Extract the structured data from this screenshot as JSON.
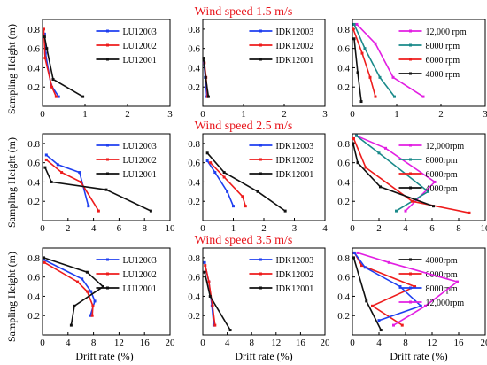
{
  "figure": {
    "row_titles": [
      "Wind speed 1.5 m/s",
      "Wind speed 2.5 m/s",
      "Wind speed 3.5 m/s"
    ],
    "ylabel": "Sampling Height (m)",
    "xlabel": "Drift rate (%)"
  },
  "colors": {
    "blue": "#1f3ff0",
    "red": "#ee1c1c",
    "black": "#111111",
    "magenta": "#e21fe2",
    "teal": "#1a8a8a",
    "title_red": "#e8141b"
  },
  "chart_data": [
    {
      "type": "line",
      "wind_speed": "1.5 m/s",
      "x_ticks": [
        "0",
        "1",
        "2",
        "3"
      ],
      "y_ticks": [
        "0.2",
        "0.4",
        "0.6",
        "0.8"
      ],
      "xlim": [
        0,
        3
      ],
      "ylim": [
        0,
        0.9
      ],
      "xlabel": "",
      "ylabel": "Sampling Height (m)",
      "series": [
        {
          "name": "LU12003",
          "color": "#1f3ff0",
          "x": [
            0.38,
            0.2,
            0.07,
            0.05
          ],
          "y": [
            0.1,
            0.22,
            0.55,
            0.75
          ]
        },
        {
          "name": "LU12002",
          "color": "#ee1c1c",
          "x": [
            0.32,
            0.22,
            0.06,
            0.03
          ],
          "y": [
            0.1,
            0.2,
            0.5,
            0.8
          ]
        },
        {
          "name": "LU12001",
          "color": "#111111",
          "x": [
            0.95,
            0.25,
            0.1,
            0.05
          ],
          "y": [
            0.1,
            0.28,
            0.6,
            0.72
          ]
        }
      ]
    },
    {
      "type": "line",
      "wind_speed": "1.5 m/s",
      "x_ticks": [
        "0",
        "1",
        "2",
        "3"
      ],
      "y_ticks": [
        "0.2",
        "0.4",
        "0.6",
        "0.8"
      ],
      "xlim": [
        0,
        3
      ],
      "ylim": [
        0,
        0.9
      ],
      "xlabel": "",
      "ylabel": "",
      "series": [
        {
          "name": "IDK12003",
          "color": "#1f3ff0",
          "x": [
            0.1,
            0.06,
            0.03
          ],
          "y": [
            0.1,
            0.3,
            0.45
          ]
        },
        {
          "name": "IDK12002",
          "color": "#ee1c1c",
          "x": [
            0.12,
            0.08,
            0.04
          ],
          "y": [
            0.1,
            0.3,
            0.45
          ]
        },
        {
          "name": "IDK12001",
          "color": "#111111",
          "x": [
            0.14,
            0.07,
            0.02
          ],
          "y": [
            0.1,
            0.3,
            0.5
          ]
        }
      ]
    },
    {
      "type": "line",
      "wind_speed": "1.5 m/s",
      "x_ticks": [
        "0",
        "1",
        "2",
        "3"
      ],
      "y_ticks": [
        "0.2",
        "0.4",
        "0.6",
        "0.8"
      ],
      "xlim": [
        0,
        3
      ],
      "ylim": [
        0,
        0.9
      ],
      "xlabel": "",
      "ylabel": "",
      "series": [
        {
          "name": "12,000 rpm",
          "color": "#e21fe2",
          "x": [
            1.6,
            0.92,
            0.52,
            0.1
          ],
          "y": [
            0.1,
            0.3,
            0.65,
            0.85
          ]
        },
        {
          "name": "8000 rpm",
          "color": "#1a8a8a",
          "x": [
            0.95,
            0.62,
            0.28,
            0.04
          ],
          "y": [
            0.1,
            0.3,
            0.6,
            0.85
          ]
        },
        {
          "name": "6000 rpm",
          "color": "#ee1c1c",
          "x": [
            0.52,
            0.4,
            0.22,
            0.02
          ],
          "y": [
            0.1,
            0.3,
            0.55,
            0.8
          ]
        },
        {
          "name": "4000 rpm",
          "color": "#111111",
          "x": [
            0.2,
            0.12,
            0.04
          ],
          "y": [
            0.05,
            0.35,
            0.7
          ]
        }
      ]
    },
    {
      "type": "line",
      "wind_speed": "2.5 m/s",
      "x_ticks": [
        "0",
        "2",
        "4",
        "6",
        "8",
        "10"
      ],
      "y_ticks": [
        "0.2",
        "0.4",
        "0.6",
        "0.8"
      ],
      "xlim": [
        0,
        10
      ],
      "ylim": [
        0,
        0.9
      ],
      "xlabel": "",
      "ylabel": "Sampling Height (m)",
      "series": [
        {
          "name": "LU12003",
          "color": "#1f3ff0",
          "x": [
            3.6,
            2.9,
            1.2,
            0.3
          ],
          "y": [
            0.15,
            0.5,
            0.58,
            0.68
          ]
        },
        {
          "name": "LU12002",
          "color": "#ee1c1c",
          "x": [
            4.4,
            3.0,
            1.5,
            0.3
          ],
          "y": [
            0.1,
            0.4,
            0.5,
            0.63
          ]
        },
        {
          "name": "LU12001",
          "color": "#111111",
          "x": [
            8.5,
            5.0,
            0.7,
            0.2
          ],
          "y": [
            0.1,
            0.32,
            0.4,
            0.55
          ]
        }
      ]
    },
    {
      "type": "line",
      "wind_speed": "2.5 m/s",
      "x_ticks": [
        "0",
        "1",
        "2",
        "3",
        "4"
      ],
      "y_ticks": [
        "0.2",
        "0.4",
        "0.6",
        "0.8"
      ],
      "xlim": [
        0,
        4
      ],
      "ylim": [
        0,
        0.9
      ],
      "xlabel": "",
      "ylabel": "",
      "series": [
        {
          "name": "IDK12003",
          "color": "#1f3ff0",
          "x": [
            1.0,
            0.8,
            0.4,
            0.15
          ],
          "y": [
            0.15,
            0.3,
            0.5,
            0.62
          ]
        },
        {
          "name": "IDK12002",
          "color": "#ee1c1c",
          "x": [
            1.4,
            1.3,
            0.7,
            0.25
          ],
          "y": [
            0.15,
            0.25,
            0.45,
            0.6
          ]
        },
        {
          "name": "IDK12001",
          "color": "#111111",
          "x": [
            2.7,
            1.8,
            0.7,
            0.15
          ],
          "y": [
            0.1,
            0.3,
            0.5,
            0.7
          ]
        }
      ]
    },
    {
      "type": "line",
      "wind_speed": "2.5 m/s",
      "x_ticks": [
        "0",
        "2",
        "4",
        "6",
        "8",
        "10"
      ],
      "y_ticks": [
        "0.2",
        "0.4",
        "0.6",
        "0.8"
      ],
      "xlim": [
        0,
        10
      ],
      "ylim": [
        0,
        0.9
      ],
      "xlabel": "",
      "ylabel": "",
      "series": [
        {
          "name": "12,000rpm",
          "color": "#e21fe2",
          "x": [
            4.0,
            6.2,
            2.5,
            0.3
          ],
          "y": [
            0.1,
            0.4,
            0.75,
            0.88
          ]
        },
        {
          "name": "8000rpm",
          "color": "#1a8a8a",
          "x": [
            3.3,
            5.7,
            2.0,
            0.3
          ],
          "y": [
            0.1,
            0.3,
            0.7,
            0.88
          ]
        },
        {
          "name": "6000rpm",
          "color": "#ee1c1c",
          "x": [
            8.8,
            4.5,
            1.0,
            0.1
          ],
          "y": [
            0.08,
            0.2,
            0.55,
            0.85
          ]
        },
        {
          "name": "4000rpm",
          "color": "#111111",
          "x": [
            6.1,
            2.1,
            0.4,
            0.05
          ],
          "y": [
            0.15,
            0.35,
            0.6,
            0.8
          ]
        }
      ]
    },
    {
      "type": "line",
      "wind_speed": "3.5 m/s",
      "x_ticks": [
        "0",
        "4",
        "8",
        "12",
        "16",
        "20"
      ],
      "y_ticks": [
        "0.2",
        "0.4",
        "0.6",
        "0.8"
      ],
      "xlim": [
        0,
        20
      ],
      "ylim": [
        0,
        0.9
      ],
      "xlabel": "Drift rate (%)",
      "ylabel": "Sampling Height (m)",
      "series": [
        {
          "name": "LU12003",
          "color": "#1f3ff0",
          "x": [
            7.5,
            8.2,
            7.6,
            6.2,
            0.2
          ],
          "y": [
            0.2,
            0.35,
            0.45,
            0.58,
            0.78
          ]
        },
        {
          "name": "LU12002",
          "color": "#ee1c1c",
          "x": [
            7.8,
            7.9,
            7.0,
            5.5,
            0.3
          ],
          "y": [
            0.2,
            0.3,
            0.45,
            0.55,
            0.75
          ]
        },
        {
          "name": "LU12001",
          "color": "#111111",
          "x": [
            4.5,
            5.0,
            9.5,
            7.0,
            0.2
          ],
          "y": [
            0.1,
            0.3,
            0.5,
            0.65,
            0.8
          ]
        }
      ]
    },
    {
      "type": "line",
      "wind_speed": "3.5 m/s",
      "x_ticks": [
        "0",
        "4",
        "8",
        "12",
        "16",
        "20"
      ],
      "y_ticks": [
        "0.2",
        "0.4",
        "0.6",
        "0.8"
      ],
      "xlim": [
        0,
        20
      ],
      "ylim": [
        0,
        0.9
      ],
      "xlabel": "Drift rate (%)",
      "ylabel": "",
      "series": [
        {
          "name": "IDK12003",
          "color": "#1f3ff0",
          "x": [
            1.8,
            1.5,
            1.0,
            0.3
          ],
          "y": [
            0.1,
            0.3,
            0.55,
            0.75
          ]
        },
        {
          "name": "IDK12002",
          "color": "#ee1c1c",
          "x": [
            2.0,
            1.6,
            1.0,
            0.4
          ],
          "y": [
            0.1,
            0.3,
            0.55,
            0.72
          ]
        },
        {
          "name": "IDK12001",
          "color": "#111111",
          "x": [
            4.5,
            1.2,
            0.3
          ],
          "y": [
            0.05,
            0.4,
            0.65
          ]
        }
      ]
    },
    {
      "type": "line",
      "wind_speed": "3.5 m/s",
      "x_ticks": [
        "0",
        "4",
        "8",
        "12",
        "16",
        "20"
      ],
      "y_ticks": [
        "0.2",
        "0.4",
        "0.6",
        "0.8"
      ],
      "xlim": [
        0,
        20
      ],
      "ylim": [
        0,
        0.9
      ],
      "xlabel": "Drift rate (%)",
      "ylabel": "",
      "series": [
        {
          "name": "4000rpm",
          "color": "#111111",
          "x": [
            4.3,
            2.1,
            0.2
          ],
          "y": [
            0.05,
            0.35,
            0.8
          ]
        },
        {
          "name": "6000rpm",
          "color": "#ee1c1c",
          "x": [
            7.5,
            3.0,
            9.4,
            1.4,
            0.3
          ],
          "y": [
            0.1,
            0.3,
            0.5,
            0.72,
            0.85
          ]
        },
        {
          "name": "8000rpm",
          "color": "#1f3ff0",
          "x": [
            4.0,
            10.3,
            7.2,
            1.9,
            0.3
          ],
          "y": [
            0.15,
            0.3,
            0.5,
            0.7,
            0.85
          ]
        },
        {
          "name": "12,000rpm",
          "color": "#e21fe2",
          "x": [
            6.2,
            11.0,
            15.8,
            5.5,
            0.8
          ],
          "y": [
            0.1,
            0.3,
            0.55,
            0.75,
            0.85
          ]
        }
      ]
    }
  ]
}
